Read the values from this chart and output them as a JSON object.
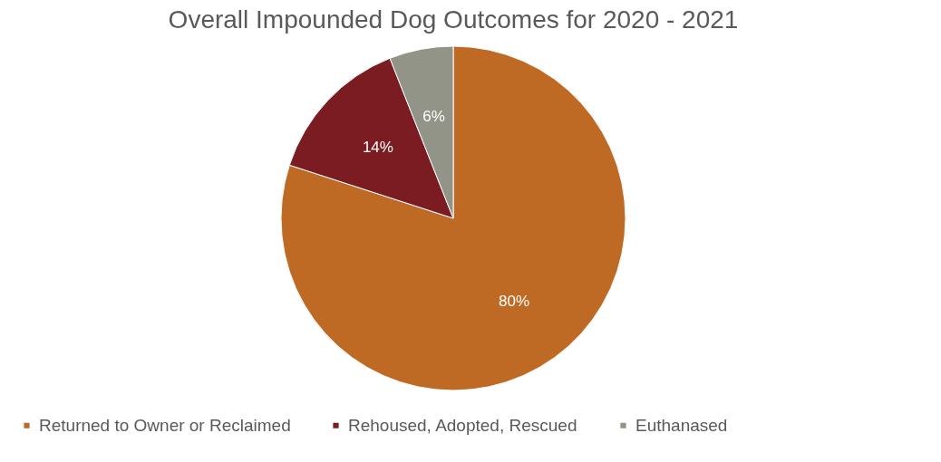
{
  "chart_data": {
    "type": "pie",
    "title": "Overall Impounded Dog Outcomes for 2020 - 2021",
    "categories": [
      "Returned to Owner or Reclaimed",
      "Rehoused, Adopted, Rescued",
      "Euthanased"
    ],
    "values": [
      80,
      14,
      6
    ],
    "colors": [
      "#bf6a24",
      "#7b1c22",
      "#919487"
    ],
    "value_labels": [
      "80%",
      "14%",
      "6%"
    ],
    "legend": "bottom"
  }
}
